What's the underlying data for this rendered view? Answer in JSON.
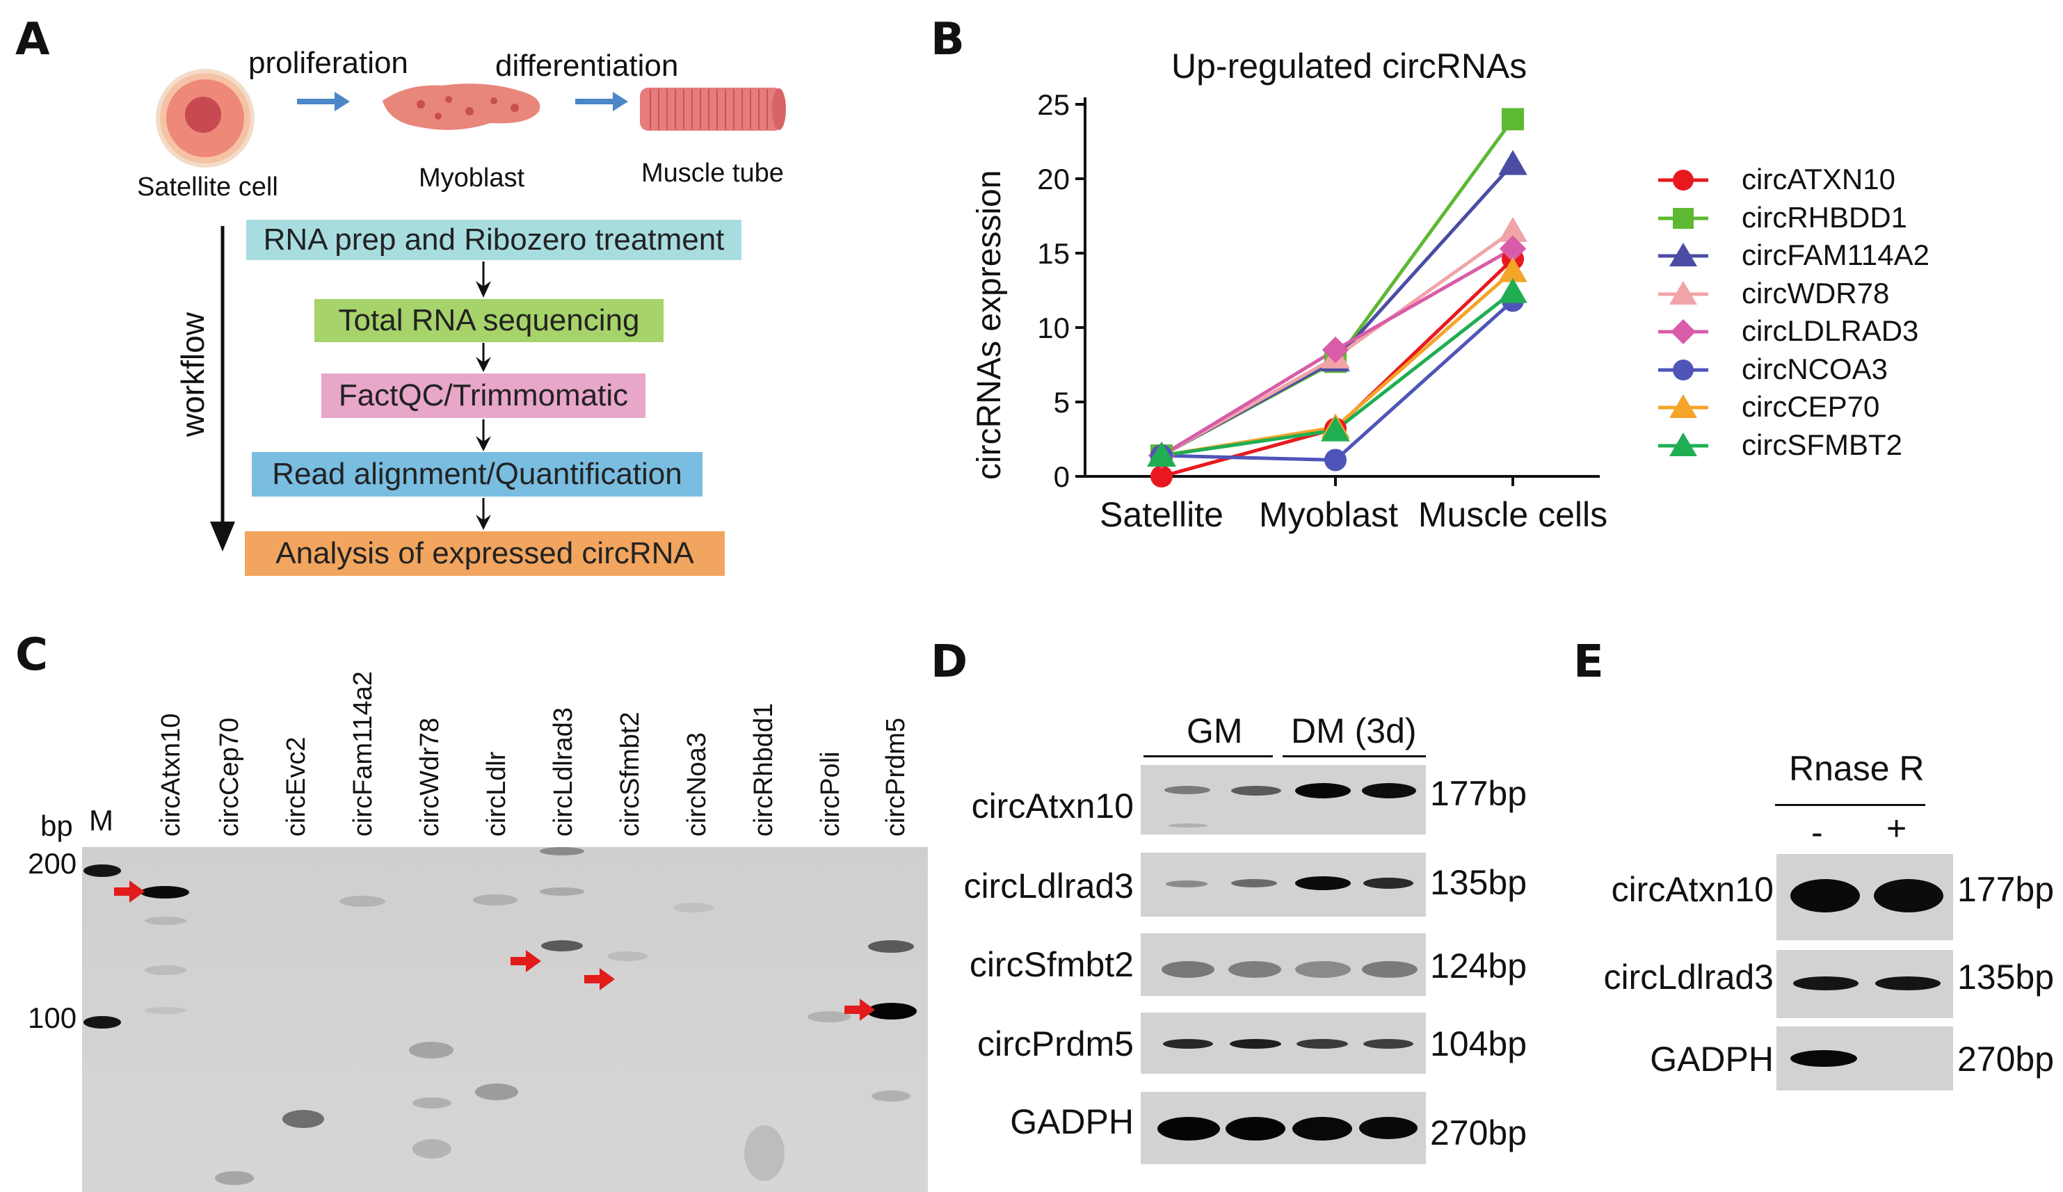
{
  "panels": {
    "a": "A",
    "b": "B",
    "c": "C",
    "d": "D",
    "e": "E"
  },
  "panel_a": {
    "steps_top": {
      "proliferation": "proliferation",
      "differentiation": "differentiation"
    },
    "cells": {
      "satellite": "Satellite cell",
      "myoblast": "Myoblast",
      "muscle_tube": "Muscle tube"
    },
    "workflow_label": "workflow",
    "workflow_steps": [
      {
        "label": "RNA prep and Ribozero treatment",
        "color": "#a8dde0"
      },
      {
        "label": "Total RNA sequencing",
        "color": "#a6d36a"
      },
      {
        "label": "FactQC/Trimmomatic",
        "color": "#e8a6c8"
      },
      {
        "label": "Read alignment/Quantification",
        "color": "#79bde0"
      },
      {
        "label": "Analysis of expressed circRNA",
        "color": "#f2a55e"
      }
    ]
  },
  "chart_data": {
    "type": "line",
    "title": "Up-regulated circRNAs",
    "xlabel": "",
    "ylabel": "circRNAs expression",
    "categories": [
      "Satellite",
      "Myoblast",
      "Muscle cells"
    ],
    "ylim": [
      0,
      25
    ],
    "yticks": [
      "0",
      "5",
      "10",
      "15",
      "20",
      "25"
    ],
    "legend_position": "right",
    "series": [
      {
        "name": "circATXN10",
        "color": "#e8191e",
        "marker": "circle",
        "values": [
          0,
          3.2,
          14.6
        ]
      },
      {
        "name": "circRHBDD1",
        "color": "#5db832",
        "marker": "square",
        "values": [
          1.4,
          7.7,
          24
        ]
      },
      {
        "name": "circFAM114A2",
        "color": "#4a4da3",
        "marker": "triangle",
        "values": [
          1.4,
          7.8,
          21
        ]
      },
      {
        "name": "circWDR78",
        "color": "#f0a4a8",
        "marker": "triangle",
        "values": [
          1.4,
          8.0,
          16.5
        ]
      },
      {
        "name": "circLDLRAD3",
        "color": "#d85ca8",
        "marker": "diamond",
        "values": [
          1.4,
          8.5,
          15.3
        ]
      },
      {
        "name": "circNCOA3",
        "color": "#4f55b8",
        "marker": "circle",
        "values": [
          1.4,
          1.1,
          11.8
        ]
      },
      {
        "name": "circCEP70",
        "color": "#f5a42a",
        "marker": "triangle",
        "values": [
          1.4,
          3.3,
          13.8
        ]
      },
      {
        "name": "circSFMBT2",
        "color": "#1fae52",
        "marker": "triangle",
        "values": [
          1.4,
          3.1,
          12.4
        ]
      }
    ]
  },
  "panel_c": {
    "bp_label": "bp",
    "marker_label": "M",
    "bp_200": "200",
    "bp_100": "100",
    "lanes": [
      "circAtxn10",
      "circCep70",
      "circEvc2",
      "circFam114a2",
      "circWdr78",
      "circLdlr",
      "circLdlrad3",
      "circSfmbt2",
      "circNoa3",
      "circRhbdd1",
      "circPoli",
      "circPrdm5"
    ]
  },
  "panel_d": {
    "gm": "GM",
    "dm": "DM (3d)",
    "rows": [
      {
        "label": "circAtxn10",
        "size": "177bp"
      },
      {
        "label": "circLdlrad3",
        "size": "135bp"
      },
      {
        "label": "circSfmbt2",
        "size": "124bp"
      },
      {
        "label": "circPrdm5",
        "size": "104bp"
      },
      {
        "label": "GADPH",
        "size": "270bp"
      }
    ]
  },
  "panel_e": {
    "title": "Rnase R",
    "minus": "-",
    "plus": "+",
    "rows": [
      {
        "label": "circAtxn10",
        "size": "177bp"
      },
      {
        "label": "circLdlrad3",
        "size": "135bp"
      },
      {
        "label": "GADPH",
        "size": "270bp"
      }
    ]
  }
}
